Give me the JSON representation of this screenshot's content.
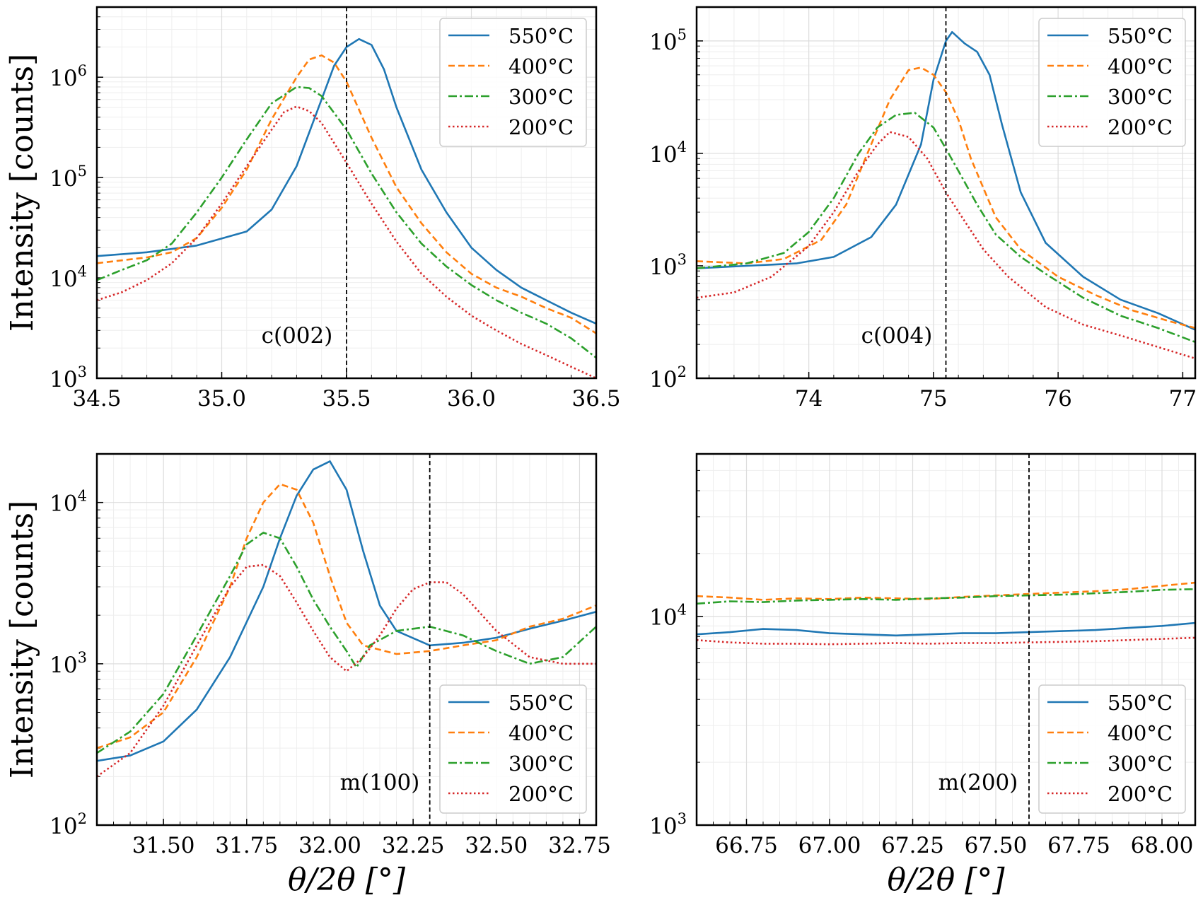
{
  "legend": {
    "entries": [
      "550°C",
      "400°C",
      "300°C",
      "200°C"
    ]
  },
  "series_colors": [
    "#1f77b4",
    "#ff7f0e",
    "#2ca02c",
    "#d62728"
  ],
  "chart_data": [
    {
      "type": "line",
      "yscale": "log",
      "xlim": [
        34.5,
        36.5
      ],
      "ylim": [
        1000,
        5000000
      ],
      "xticks": [
        34.5,
        35.0,
        35.5,
        36.0,
        36.5
      ],
      "xtick_labels": [
        "34.5",
        "35.0",
        "35.5",
        "36.0",
        "36.5"
      ],
      "yticks": [
        1000,
        10000,
        100000,
        1000000
      ],
      "ytick_labels": [
        [
          "10",
          "3"
        ],
        [
          "10",
          "4"
        ],
        [
          "10",
          "5"
        ],
        [
          "10",
          "6"
        ]
      ],
      "ylabel": "Intensity [counts]",
      "xlabel": "",
      "reference_line_x": 35.5,
      "annotation": "c(002)",
      "legend_position": "top-right",
      "grid": true,
      "series": [
        {
          "name": "550°C",
          "x": [
            34.5,
            34.7,
            34.9,
            35.1,
            35.2,
            35.3,
            35.4,
            35.45,
            35.5,
            35.55,
            35.6,
            35.65,
            35.7,
            35.8,
            35.9,
            36.0,
            36.1,
            36.2,
            36.3,
            36.4,
            36.5
          ],
          "y": [
            16500,
            18000,
            21000,
            29000,
            48000,
            130000,
            600000,
            1300000,
            2000000,
            2400000,
            2100000,
            1200000,
            500000,
            120000,
            45000,
            20000,
            12000,
            8000,
            6000,
            4500,
            3500
          ]
        },
        {
          "name": "400°C",
          "x": [
            34.5,
            34.7,
            34.8,
            34.9,
            35.0,
            35.1,
            35.2,
            35.3,
            35.35,
            35.4,
            35.45,
            35.5,
            35.6,
            35.7,
            35.8,
            35.9,
            36.0,
            36.1,
            36.2,
            36.3,
            36.4,
            36.5
          ],
          "y": [
            14000,
            16000,
            18000,
            25000,
            50000,
            120000,
            380000,
            1000000,
            1500000,
            1650000,
            1400000,
            900000,
            250000,
            80000,
            35000,
            18000,
            11000,
            8000,
            6500,
            5000,
            4000,
            2800
          ]
        },
        {
          "name": "300°C",
          "x": [
            34.5,
            34.6,
            34.7,
            34.8,
            34.9,
            35.0,
            35.1,
            35.2,
            35.3,
            35.35,
            35.4,
            35.5,
            35.6,
            35.7,
            35.8,
            35.9,
            36.0,
            36.1,
            36.2,
            36.3,
            36.4,
            36.5
          ],
          "y": [
            9500,
            12000,
            15000,
            22000,
            45000,
            100000,
            240000,
            550000,
            800000,
            780000,
            650000,
            300000,
            110000,
            45000,
            22000,
            13000,
            8500,
            6000,
            4500,
            3500,
            2500,
            1600
          ]
        },
        {
          "name": "200°C",
          "x": [
            34.5,
            34.6,
            34.7,
            34.8,
            34.9,
            35.0,
            35.1,
            35.2,
            35.25,
            35.3,
            35.35,
            35.4,
            35.5,
            35.6,
            35.7,
            35.8,
            35.9,
            36.0,
            36.1,
            36.2,
            36.3,
            36.4,
            36.5
          ],
          "y": [
            6000,
            7200,
            9500,
            14000,
            25000,
            55000,
            130000,
            300000,
            450000,
            510000,
            460000,
            350000,
            140000,
            55000,
            23000,
            11000,
            6500,
            4200,
            3000,
            2200,
            1700,
            1300,
            1000
          ]
        }
      ]
    },
    {
      "type": "line",
      "yscale": "log",
      "xlim": [
        73.1,
        77.1
      ],
      "ylim": [
        100,
        200000
      ],
      "xticks": [
        74,
        75,
        76,
        77
      ],
      "xtick_labels": [
        "74",
        "75",
        "76",
        "77"
      ],
      "yticks": [
        100,
        1000,
        10000,
        100000
      ],
      "ytick_labels": [
        [
          "10",
          "2"
        ],
        [
          "10",
          "3"
        ],
        [
          "10",
          "4"
        ],
        [
          "10",
          "5"
        ]
      ],
      "ylabel": "",
      "xlabel": "",
      "reference_line_x": 75.1,
      "annotation": "c(004)",
      "legend_position": "top-right",
      "grid": true,
      "series": [
        {
          "name": "550°C",
          "x": [
            73.1,
            73.5,
            73.9,
            74.2,
            74.5,
            74.7,
            74.9,
            75.0,
            75.1,
            75.15,
            75.25,
            75.35,
            75.45,
            75.55,
            75.7,
            75.9,
            76.2,
            76.5,
            76.8,
            77.1
          ],
          "y": [
            950,
            1000,
            1050,
            1200,
            1800,
            3500,
            12000,
            45000,
            100000,
            120000,
            95000,
            80000,
            50000,
            18000,
            4500,
            1600,
            800,
            500,
            380,
            270
          ]
        },
        {
          "name": "400°C",
          "x": [
            73.1,
            73.5,
            73.8,
            74.1,
            74.3,
            74.5,
            74.65,
            74.8,
            74.9,
            75.0,
            75.1,
            75.2,
            75.3,
            75.5,
            75.7,
            76.0,
            76.3,
            76.6,
            76.9,
            77.1
          ],
          "y": [
            1100,
            1050,
            1150,
            1700,
            3500,
            12000,
            30000,
            55000,
            58000,
            50000,
            35000,
            20000,
            9000,
            2700,
            1400,
            800,
            550,
            400,
            320,
            280
          ]
        },
        {
          "name": "300°C",
          "x": [
            73.1,
            73.5,
            73.8,
            74.0,
            74.2,
            74.4,
            74.55,
            74.7,
            74.85,
            75.0,
            75.1,
            75.2,
            75.35,
            75.5,
            75.7,
            75.9,
            76.2,
            76.5,
            76.8,
            77.1
          ],
          "y": [
            950,
            1050,
            1300,
            2000,
            4000,
            10000,
            17000,
            22000,
            23000,
            17000,
            11000,
            7000,
            3500,
            1900,
            1200,
            850,
            520,
            360,
            280,
            210
          ]
        },
        {
          "name": "200°C",
          "x": [
            73.1,
            73.4,
            73.7,
            74.0,
            74.2,
            74.4,
            74.55,
            74.65,
            74.8,
            74.95,
            75.1,
            75.25,
            75.4,
            75.6,
            75.9,
            76.2,
            76.5,
            76.8,
            77.1
          ],
          "y": [
            520,
            580,
            800,
            1500,
            3000,
            7000,
            12000,
            15500,
            14000,
            9000,
            4500,
            2500,
            1400,
            800,
            430,
            300,
            240,
            190,
            150
          ]
        }
      ]
    },
    {
      "type": "line",
      "yscale": "log",
      "xlim": [
        31.3,
        32.8
      ],
      "ylim": [
        100,
        20000
      ],
      "xticks": [
        31.5,
        31.75,
        32.0,
        32.25,
        32.5,
        32.75
      ],
      "xtick_labels": [
        "31.50",
        "31.75",
        "32.00",
        "32.25",
        "32.50",
        "32.75"
      ],
      "yticks": [
        100,
        1000,
        10000
      ],
      "ytick_labels": [
        [
          "10",
          "2"
        ],
        [
          "10",
          "3"
        ],
        [
          "10",
          "4"
        ]
      ],
      "ylabel": "Intensity [counts]",
      "xlabel": "θ/2θ [°]",
      "reference_line_x": 32.3,
      "annotation": "m(100)",
      "legend_position": "bottom-right",
      "grid": true,
      "series": [
        {
          "name": "550°C",
          "x": [
            31.3,
            31.4,
            31.5,
            31.6,
            31.7,
            31.8,
            31.85,
            31.9,
            31.95,
            32.0,
            32.05,
            32.1,
            32.15,
            32.2,
            32.3,
            32.4,
            32.5,
            32.6,
            32.7,
            32.8
          ],
          "y": [
            250,
            270,
            330,
            520,
            1100,
            3000,
            6000,
            11000,
            16000,
            18000,
            12000,
            5000,
            2300,
            1600,
            1300,
            1350,
            1450,
            1650,
            1850,
            2100
          ]
        },
        {
          "name": "400°C",
          "x": [
            31.3,
            31.4,
            31.5,
            31.6,
            31.7,
            31.75,
            31.8,
            31.85,
            31.9,
            31.95,
            32.0,
            32.05,
            32.1,
            32.2,
            32.3,
            32.4,
            32.5,
            32.6,
            32.7,
            32.8
          ],
          "y": [
            300,
            350,
            500,
            1100,
            3000,
            6000,
            10000,
            13000,
            12000,
            7500,
            3500,
            1800,
            1300,
            1150,
            1200,
            1300,
            1400,
            1700,
            1900,
            2300
          ]
        },
        {
          "name": "300°C",
          "x": [
            31.3,
            31.4,
            31.5,
            31.6,
            31.7,
            31.75,
            31.8,
            31.85,
            31.9,
            31.95,
            32.0,
            32.05,
            32.08,
            32.12,
            32.2,
            32.3,
            32.4,
            32.5,
            32.6,
            32.7,
            32.8
          ],
          "y": [
            280,
            380,
            650,
            1500,
            3500,
            5500,
            6500,
            6000,
            4000,
            2500,
            1700,
            1200,
            950,
            1300,
            1600,
            1700,
            1500,
            1200,
            1000,
            1100,
            1700
          ]
        },
        {
          "name": "200°C",
          "x": [
            31.3,
            31.4,
            31.5,
            31.6,
            31.7,
            31.75,
            31.8,
            31.85,
            31.9,
            31.95,
            32.0,
            32.05,
            32.1,
            32.15,
            32.2,
            32.25,
            32.3,
            32.35,
            32.4,
            32.5,
            32.6,
            32.7,
            32.8
          ],
          "y": [
            200,
            280,
            550,
            1300,
            3000,
            4000,
            4100,
            3500,
            2400,
            1600,
            1100,
            900,
            1100,
            1500,
            2200,
            2900,
            3200,
            3200,
            2700,
            1600,
            1100,
            1000,
            1000
          ]
        }
      ]
    },
    {
      "type": "line",
      "yscale": "log",
      "xlim": [
        66.6,
        68.1
      ],
      "ylim": [
        1000,
        60000
      ],
      "xticks": [
        66.75,
        67.0,
        67.25,
        67.5,
        67.75,
        68.0
      ],
      "xtick_labels": [
        "66.75",
        "67.00",
        "67.25",
        "67.50",
        "67.75",
        "68.00"
      ],
      "yticks": [
        1000,
        10000
      ],
      "ytick_labels": [
        [
          "10",
          "3"
        ],
        [
          "10",
          "4"
        ]
      ],
      "ylabel": "",
      "xlabel": "θ/2θ [°]",
      "reference_line_x": 67.6,
      "annotation": "m(200)",
      "legend_position": "bottom-right",
      "grid": true,
      "series": [
        {
          "name": "550°C",
          "x": [
            66.6,
            66.7,
            66.8,
            66.9,
            67.0,
            67.1,
            67.2,
            67.3,
            67.4,
            67.5,
            67.6,
            67.7,
            67.8,
            67.9,
            68.0,
            68.1
          ],
          "y": [
            8200,
            8400,
            8700,
            8600,
            8300,
            8200,
            8100,
            8200,
            8300,
            8300,
            8400,
            8500,
            8600,
            8800,
            9000,
            9300
          ]
        },
        {
          "name": "400°C",
          "x": [
            66.6,
            66.7,
            66.8,
            66.9,
            67.0,
            67.1,
            67.2,
            67.3,
            67.4,
            67.5,
            67.6,
            67.7,
            67.8,
            67.9,
            68.0,
            68.1
          ],
          "y": [
            12500,
            12300,
            12000,
            12200,
            12100,
            12300,
            12200,
            12100,
            12400,
            12600,
            12800,
            13000,
            13200,
            13500,
            14000,
            14500
          ]
        },
        {
          "name": "300°C",
          "x": [
            66.6,
            66.7,
            66.8,
            66.9,
            67.0,
            67.1,
            67.2,
            67.3,
            67.4,
            67.5,
            67.6,
            67.7,
            67.8,
            67.9,
            68.0,
            68.1
          ],
          "y": [
            11500,
            11800,
            11700,
            11900,
            12000,
            12100,
            12000,
            12200,
            12300,
            12500,
            12600,
            12700,
            12900,
            13100,
            13400,
            13500
          ]
        },
        {
          "name": "200°C",
          "x": [
            66.6,
            66.7,
            66.8,
            66.9,
            67.0,
            67.1,
            67.2,
            67.3,
            67.4,
            67.5,
            67.6,
            67.7,
            67.8,
            67.9,
            68.0,
            68.1
          ],
          "y": [
            7700,
            7500,
            7400,
            7400,
            7350,
            7400,
            7450,
            7400,
            7450,
            7450,
            7500,
            7550,
            7600,
            7700,
            7800,
            7900
          ]
        }
      ]
    }
  ]
}
